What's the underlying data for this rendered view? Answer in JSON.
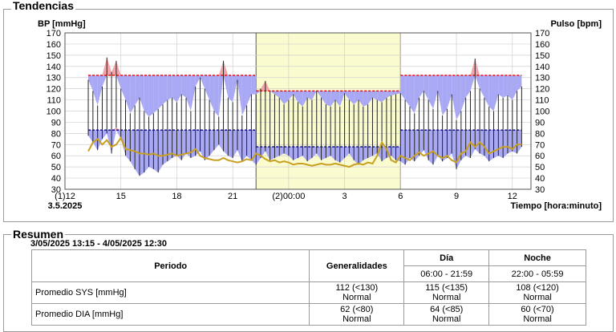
{
  "trends": {
    "title": "Tendencias"
  },
  "summary": {
    "title": "Resumen",
    "date_range": "3/05/2025 13:15 - 4/05/2025 12:30",
    "headers": {
      "period": "Periodo",
      "overall": "Generalidades",
      "day": "Día",
      "night": "Noche"
    },
    "day_range": "06:00 - 21:59",
    "night_range": "22:00 - 05:59",
    "rows": [
      {
        "label": "Promedio SYS [mmHg]",
        "overall": "112 (<130)",
        "overall_status": "Normal",
        "day": "115 (<135)",
        "day_status": "Normal",
        "night": "108 (<120)",
        "night_status": "Normal"
      },
      {
        "label": "Promedio DIA [mmHg]",
        "overall": "62 (<80)",
        "overall_status": "Normal",
        "day": "64 (<85)",
        "day_status": "Normal",
        "night": "60 (<70)",
        "night_status": "Normal"
      }
    ]
  },
  "colors": {
    "sys_line": "#ee0000",
    "dia_line": "#000099",
    "over": "#f2a6aa",
    "under": "#a8a8f4",
    "pulse": "#c8a020",
    "night_bg": "#fbfbd0"
  },
  "chart_data": {
    "type": "line",
    "title": "",
    "ylabel_left": "BP [mmHg]",
    "ylabel_right": "Pulso [bpm]",
    "xlabel": "Tiempo [hora:minuto]",
    "ylim": [
      30,
      170
    ],
    "yticks": [
      30,
      40,
      50,
      60,
      70,
      80,
      90,
      100,
      110,
      120,
      130,
      140,
      150,
      160,
      170
    ],
    "x_unit": "hours since 3.5.2025 12:00",
    "xlim": [
      0,
      25
    ],
    "xticks": [
      {
        "x": 0,
        "label": "(1)12",
        "sublabel": "3.5.2025"
      },
      {
        "x": 3,
        "label": "15"
      },
      {
        "x": 6,
        "label": "18"
      },
      {
        "x": 9,
        "label": "21"
      },
      {
        "x": 12,
        "label": "(2)00:00"
      },
      {
        "x": 15,
        "label": "3"
      },
      {
        "x": 18,
        "label": "6"
      },
      {
        "x": 21,
        "label": "9"
      },
      {
        "x": 24,
        "label": "12"
      }
    ],
    "night_period": [
      10.25,
      18
    ],
    "thresholds": [
      {
        "name": "SYS día",
        "value": 132,
        "from": 1.25,
        "to": 10.25
      },
      {
        "name": "SYS noche",
        "value": 118,
        "from": 10.25,
        "to": 18
      },
      {
        "name": "SYS día",
        "value": 132,
        "from": 18,
        "to": 24.5
      },
      {
        "name": "DIA día",
        "value": 83,
        "from": 1.25,
        "to": 10.25
      },
      {
        "name": "DIA noche",
        "value": 68,
        "from": 10.25,
        "to": 18
      },
      {
        "name": "DIA día",
        "value": 83,
        "from": 18,
        "to": 24.5
      }
    ],
    "x": [
      1.25,
      1.5,
      1.75,
      2.0,
      2.25,
      2.5,
      2.75,
      3.0,
      3.25,
      3.5,
      3.75,
      4.0,
      4.25,
      4.5,
      4.75,
      5.0,
      5.25,
      5.5,
      5.75,
      6.0,
      6.25,
      6.5,
      6.75,
      7.0,
      7.25,
      7.5,
      7.75,
      8.0,
      8.25,
      8.5,
      8.75,
      9.0,
      9.25,
      9.5,
      9.75,
      10.0,
      10.25,
      10.5,
      10.75,
      11.0,
      11.25,
      11.5,
      11.75,
      12.0,
      12.25,
      12.5,
      12.75,
      13.0,
      13.25,
      13.5,
      13.75,
      14.0,
      14.25,
      14.5,
      14.75,
      15.0,
      15.25,
      15.5,
      15.75,
      16.0,
      16.25,
      16.5,
      16.75,
      17.0,
      17.25,
      17.5,
      17.75,
      18.0,
      18.25,
      18.5,
      18.75,
      19.0,
      19.25,
      19.5,
      19.75,
      20.0,
      20.25,
      20.5,
      20.75,
      21.0,
      21.25,
      21.5,
      21.75,
      22.0,
      22.25,
      22.5,
      22.75,
      23.0,
      23.25,
      23.5,
      23.75,
      24.0,
      24.25,
      24.5
    ],
    "series": [
      {
        "name": "SYS",
        "values": [
          128,
          118,
          105,
          122,
          148,
          135,
          145,
          120,
          110,
          98,
          105,
          112,
          100,
          95,
          98,
          102,
          106,
          110,
          112,
          108,
          115,
          112,
          100,
          122,
          130,
          120,
          110,
          100,
          95,
          145,
          112,
          108,
          128,
          96,
          105,
          115,
          115,
          120,
          127,
          118,
          115,
          112,
          106,
          110,
          115,
          108,
          104,
          112,
          110,
          118,
          112,
          106,
          104,
          110,
          104,
          116,
          110,
          106,
          110,
          104,
          106,
          112,
          110,
          108,
          112,
          114,
          115,
          116,
          110,
          104,
          98,
          112,
          118,
          110,
          102,
          118,
          96,
          102,
          115,
          92,
          100,
          112,
          118,
          147,
          120,
          112,
          104,
          100,
          115,
          112,
          114,
          110,
          118,
          122
        ]
      },
      {
        "name": "DIA",
        "values": [
          78,
          72,
          65,
          75,
          80,
          62,
          85,
          75,
          60,
          55,
          48,
          42,
          45,
          50,
          48,
          45,
          52,
          55,
          58,
          60,
          56,
          62,
          58,
          60,
          64,
          56,
          60,
          65,
          70,
          64,
          60,
          58,
          65,
          55,
          60,
          56,
          52,
          58,
          64,
          56,
          58,
          60,
          62,
          60,
          56,
          58,
          60,
          55,
          58,
          62,
          56,
          58,
          60,
          56,
          54,
          58,
          62,
          56,
          52,
          56,
          58,
          60,
          62,
          55,
          58,
          60,
          56,
          55,
          52,
          58,
          55,
          60,
          65,
          56,
          52,
          60,
          55,
          58,
          62,
          48,
          56,
          60,
          58,
          66,
          62,
          60,
          55,
          58,
          60,
          58,
          62,
          64,
          62,
          68
        ]
      },
      {
        "name": "Pulso",
        "values": [
          64,
          72,
          75,
          70,
          74,
          68,
          70,
          76,
          66,
          65,
          64,
          62,
          62,
          61,
          62,
          60,
          60,
          61,
          62,
          60,
          61,
          62,
          63,
          66,
          60,
          58,
          57,
          56,
          56,
          58,
          56,
          55,
          54,
          55,
          57,
          56,
          62,
          60,
          57,
          55,
          56,
          54,
          55,
          54,
          52,
          53,
          53,
          52,
          51,
          52,
          53,
          52,
          52,
          53,
          52,
          51,
          50,
          52,
          53,
          52,
          54,
          53,
          60,
          72,
          66,
          56,
          54,
          60,
          58,
          56,
          60,
          63,
          60,
          62,
          64,
          60,
          58,
          60,
          56,
          54,
          62,
          64,
          72,
          68,
          72,
          68,
          62,
          64,
          66,
          68,
          68,
          66,
          70,
          70
        ]
      }
    ]
  }
}
